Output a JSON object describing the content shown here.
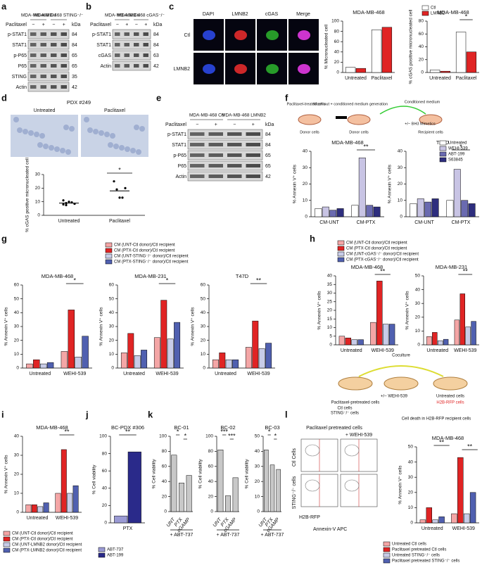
{
  "panel_letters": [
    "a",
    "b",
    "c",
    "d",
    "e",
    "f",
    "g",
    "h",
    "i",
    "j",
    "k",
    "l"
  ],
  "blots": [
    {
      "headers": [
        "MDA-MB-468 Ctl",
        "MDA-MB-468 STING⁻/⁻"
      ],
      "treatment_label": "Paclitaxel",
      "treatment": [
        "−",
        "+",
        "−",
        "+"
      ],
      "unit": "kDa",
      "rows": [
        {
          "name": "p-STAT1",
          "kda": 84
        },
        {
          "name": "STAT1",
          "kda": 84
        },
        {
          "name": "p-P65",
          "kda": 65
        },
        {
          "name": "P65",
          "kda": 65
        },
        {
          "name": "STING",
          "kda": 35
        },
        {
          "name": "Actin",
          "kda": 42
        }
      ]
    },
    {
      "headers": [
        "MDA-MB-468 Ctl",
        "MDA-MB-468 cGAS⁻/⁻"
      ],
      "treatment_label": "Paclitaxel",
      "treatment": [
        "−",
        "+",
        "−",
        "+"
      ],
      "unit": "kDa",
      "rows": [
        {
          "name": "p-STAT1",
          "kda": 84
        },
        {
          "name": "STAT1",
          "kda": 84
        },
        {
          "name": "cGAS",
          "kda": 63
        },
        {
          "name": "Actin",
          "kda": 42
        }
      ]
    },
    {
      "headers": [
        "MDA-MB-468 Ctl",
        "MDA-MB-468 LMNB2"
      ],
      "treatment_label": "Paclitaxel",
      "treatment": [
        "−",
        "+",
        "−",
        "+"
      ],
      "unit": "kDa",
      "rows": [
        {
          "name": "p-STAT1",
          "kda": 84
        },
        {
          "name": "STAT1",
          "kda": 84
        },
        {
          "name": "p-P65",
          "kda": 65
        },
        {
          "name": "P65",
          "kda": 65
        },
        {
          "name": "Actin",
          "kda": 42
        }
      ]
    }
  ],
  "microscopy": {
    "channels": [
      "DAPI",
      "LMNB2",
      "cGAS",
      "Merge"
    ],
    "rows": [
      "Ctl",
      "LMNB2"
    ]
  },
  "ihc": {
    "title": "PDX #249",
    "labels": [
      "Untreated",
      "Paclitaxel"
    ]
  },
  "schematic_f": [
    "Paclitaxel-treated cells",
    "Wash out + conditioned medium generation",
    "Conditioned medium",
    "+/− BH3 Mimetics",
    "Donor cells",
    "Donor cells",
    "Recipient cells"
  ],
  "schematic_l": [
    "Coculture",
    "Paclitaxel-pretreated cells",
    "Ctl cells",
    "STING⁻/⁻ cells",
    "+/− WEHI-539",
    "Untreated cells",
    "H2B-RFP cells",
    "Cell death in H2B-RFP recipient cells"
  ],
  "flow": {
    "title": "Paclitaxel pretreated cells",
    "column": "+ WEHI-539",
    "rows": [
      "Ctl Cells",
      "STING⁻/⁻ cells"
    ],
    "y_label": "H2B-RFP",
    "x_label": "Annexin-V APC"
  },
  "chart_data": [
    {
      "type": "bar",
      "title": "MDA-MB-468",
      "y_label": "% Micronucleated cell",
      "categories": [
        "Untreated",
        "Paclitaxel"
      ],
      "ylim": [
        0,
        100
      ],
      "yticks": [
        0,
        20,
        40,
        60,
        80,
        100
      ],
      "series": [
        {
          "name": "Ctl",
          "color": "#ffffff",
          "values": [
            10,
            83
          ]
        },
        {
          "name": "LMNB2",
          "color": "#e02424",
          "values": [
            8,
            88
          ]
        }
      ],
      "legend": true,
      "annotations": []
    },
    {
      "type": "bar",
      "title": "MDA-MB-468",
      "y_label": "% cGAS positive micronucleated cell",
      "categories": [
        "Untreated",
        "Paclitaxel"
      ],
      "ylim": [
        0,
        80
      ],
      "yticks": [
        0,
        20,
        40,
        60,
        80
      ],
      "series": [
        {
          "name": "Ctl",
          "color": "#ffffff",
          "values": [
            4,
            63
          ]
        },
        {
          "name": "LMNB2",
          "color": "#e02424",
          "values": [
            2,
            32
          ]
        }
      ],
      "legend": false,
      "annotations": [
        "*"
      ]
    },
    {
      "type": "dot",
      "title": "",
      "y_label": "% cGAS positive micronucleated cell",
      "categories": [
        "Untreated",
        "Paclitaxel"
      ],
      "ylim": [
        0,
        30
      ],
      "yticks": [
        0,
        10,
        20,
        30
      ],
      "series": [
        {
          "name": "Mean",
          "color": "#000000",
          "values": [
            9,
            18
          ],
          "points": [
            [
              8,
              9,
              10,
              9.5,
              8.5,
              11,
              7.5
            ],
            [
              25,
              19,
              13,
              13,
              20
            ]
          ]
        }
      ],
      "legend": false,
      "annotations": [
        "*"
      ]
    },
    {
      "type": "bar",
      "title": "MDA-MB-468",
      "y_label": "% Annexin V⁺ cells",
      "categories": [
        "CM-UNT",
        "CM-PTX"
      ],
      "ylim": [
        0,
        40
      ],
      "yticks": [
        0,
        10,
        20,
        30,
        40
      ],
      "series": [
        {
          "name": "Untreated",
          "color": "#ffffff",
          "values": [
            5,
            7
          ]
        },
        {
          "name": "WEHI-539",
          "color": "#c8c4e4",
          "values": [
            6,
            36
          ]
        },
        {
          "name": "ABT-199",
          "color": "#6a6ab0",
          "values": [
            4,
            7
          ]
        },
        {
          "name": "S63845",
          "color": "#2e2e7e",
          "values": [
            5,
            6
          ]
        }
      ],
      "legend": false,
      "annotations": [
        "**"
      ]
    },
    {
      "type": "bar",
      "title": "T47D",
      "y_label": "% Annexin V⁺ cells",
      "categories": [
        "CM-UNT",
        "CM-PTX"
      ],
      "ylim": [
        0,
        40
      ],
      "yticks": [
        0,
        10,
        20,
        30,
        40
      ],
      "series": [
        {
          "name": "Untreated",
          "color": "#ffffff",
          "values": [
            8,
            10
          ]
        },
        {
          "name": "WEHI-539",
          "color": "#c8c4e4",
          "values": [
            11,
            29
          ]
        },
        {
          "name": "ABT-199",
          "color": "#6a6ab0",
          "values": [
            9,
            10
          ]
        },
        {
          "name": "S63845",
          "color": "#2e2e7e",
          "values": [
            11,
            8
          ]
        }
      ],
      "legend": true,
      "annotations": [
        "*"
      ]
    },
    {
      "type": "bar",
      "title": "MDA-MB-468",
      "y_label": "% Annexin V⁺ cells",
      "categories": [
        "Untreated",
        "WEHI-539"
      ],
      "ylim": [
        0,
        60
      ],
      "yticks": [
        0,
        10,
        20,
        30,
        40,
        50,
        60
      ],
      "series": [
        {
          "name": "CM (UNT-Ctl donor)/Ctl recipient",
          "color": "#f4a6a6",
          "values": [
            3,
            12
          ]
        },
        {
          "name": "CM (PTX-Ctl donor)/Ctl recipient",
          "color": "#e02424",
          "values": [
            6,
            42
          ]
        },
        {
          "name": "CM (UNT-STING⁻/⁻ donor)/Ctl recipient",
          "color": "#c8cce8",
          "values": [
            3,
            8
          ]
        },
        {
          "name": "CM (PTX-STING⁻/⁻ donor)/Ctl recipient",
          "color": "#5060b0",
          "values": [
            4,
            23
          ]
        }
      ],
      "legend": true,
      "annotations": [
        "*"
      ]
    },
    {
      "type": "bar",
      "title": "MDA-MB-231",
      "y_label": "% Annexin V⁺ cells",
      "categories": [
        "Untreated",
        "WEHI-539"
      ],
      "ylim": [
        0,
        60
      ],
      "yticks": [
        0,
        10,
        20,
        30,
        40,
        50,
        60
      ],
      "series": [
        {
          "name": "CM (UNT-Ctl donor)/Ctl recipient",
          "color": "#f4a6a6",
          "values": [
            11,
            22
          ]
        },
        {
          "name": "CM (PTX-Ctl donor)/Ctl recipient",
          "color": "#e02424",
          "values": [
            25,
            49
          ]
        },
        {
          "name": "CM (UNT-STING⁻/⁻ donor)/Ctl recipient",
          "color": "#c8cce8",
          "values": [
            9,
            21
          ]
        },
        {
          "name": "CM (PTX-STING⁻/⁻ donor)/Ctl recipient",
          "color": "#5060b0",
          "values": [
            13,
            33
          ]
        }
      ],
      "legend": false,
      "annotations": [
        "*"
      ]
    },
    {
      "type": "bar",
      "title": "T47D",
      "y_label": "% Annexin V⁺ cells",
      "categories": [
        "Untreated",
        "WEHI-539"
      ],
      "ylim": [
        0,
        60
      ],
      "yticks": [
        0,
        10,
        20,
        30,
        40,
        50,
        60
      ],
      "series": [
        {
          "name": "CM (UNT-Ctl donor)/Ctl recipient",
          "color": "#f4a6a6",
          "values": [
            6,
            15
          ]
        },
        {
          "name": "CM (PTX-Ctl donor)/Ctl recipient",
          "color": "#e02424",
          "values": [
            11,
            34
          ]
        },
        {
          "name": "CM (UNT-STING⁻/⁻ donor)/Ctl recipient",
          "color": "#c8cce8",
          "values": [
            6,
            14
          ]
        },
        {
          "name": "CM (PTX-STING⁻/⁻ donor)/Ctl recipient",
          "color": "#5060b0",
          "values": [
            6,
            18
          ]
        }
      ],
      "legend": false,
      "annotations": [
        "**"
      ]
    },
    {
      "type": "bar",
      "title": "MDA-MB-468",
      "y_label": "% Annexin V⁺ cells",
      "categories": [
        "Untreated",
        "WEHI-539"
      ],
      "ylim": [
        0,
        40
      ],
      "yticks": [
        0,
        5,
        10,
        15,
        20,
        25,
        30,
        35,
        40
      ],
      "series": [
        {
          "name": "CM (UNT-Ctl donor)/Ctl recipient",
          "color": "#f4a6a6",
          "values": [
            5,
            13
          ]
        },
        {
          "name": "CM (PTX-Ctl donor)/Ctl recipient",
          "color": "#e02424",
          "values": [
            4,
            37
          ]
        },
        {
          "name": "CM (UNT-cGAS⁻/⁻ donor)/Ctl recipient",
          "color": "#c8cce8",
          "values": [
            3,
            12
          ]
        },
        {
          "name": "CM (PTX-cGAS⁻/⁻ donor)/Ctl recipient",
          "color": "#5060b0",
          "values": [
            3,
            12
          ]
        }
      ],
      "legend": true,
      "annotations": [
        "**"
      ]
    },
    {
      "type": "bar",
      "title": "MDA-MB-231",
      "y_label": "% Annexin V⁺ cells",
      "categories": [
        "Untreated",
        "WEHI-539"
      ],
      "ylim": [
        0,
        50
      ],
      "yticks": [
        0,
        10,
        20,
        30,
        40,
        50
      ],
      "series": [
        {
          "name": "CM (UNT-Ctl donor)/Ctl recipient",
          "color": "#f4a6a6",
          "values": [
            6,
            18
          ]
        },
        {
          "name": "CM (PTX-Ctl donor)/Ctl recipient",
          "color": "#e02424",
          "values": [
            9,
            37
          ]
        },
        {
          "name": "CM (UNT-cGAS⁻/⁻ donor)/Ctl recipient",
          "color": "#c8cce8",
          "values": [
            3,
            13
          ]
        },
        {
          "name": "CM (PTX-cGAS⁻/⁻ donor)/Ctl recipient",
          "color": "#5060b0",
          "values": [
            4,
            17
          ]
        }
      ],
      "legend": false,
      "annotations": [
        "**"
      ]
    },
    {
      "type": "bar",
      "title": "MDA-MB-468",
      "y_label": "% Annexin V⁺ cells",
      "categories": [
        "Untreated",
        "WEHI-539"
      ],
      "ylim": [
        0,
        40
      ],
      "yticks": [
        0,
        10,
        20,
        30,
        40
      ],
      "series": [
        {
          "name": "CM (UNT-Ctl donor)/Ctl recipient",
          "color": "#f4a6a6",
          "values": [
            4,
            10
          ]
        },
        {
          "name": "CM (PTX-Ctl donor)/Ctl recipient",
          "color": "#e02424",
          "values": [
            4,
            33
          ]
        },
        {
          "name": "CM (UNT-LMNB2 donor)/Ctl recipient",
          "color": "#c8cce8",
          "values": [
            3,
            10
          ]
        },
        {
          "name": "CM (PTX-LMNB2 donor)/Ctl recipient",
          "color": "#5060b0",
          "values": [
            5,
            14
          ]
        }
      ],
      "legend": true,
      "annotations": [
        "**"
      ]
    },
    {
      "type": "bar",
      "title": "BC-PDX #306",
      "y_label": "% Cell viability",
      "categories": [
        "PTX"
      ],
      "ylim": [
        0,
        100
      ],
      "yticks": [
        0,
        20,
        40,
        60,
        80,
        100
      ],
      "series": [
        {
          "name": "ABT-737",
          "color": "#9a9ad4",
          "values": [
            8
          ]
        },
        {
          "name": "ABT-199",
          "color": "#2a2a8a",
          "values": [
            82
          ]
        }
      ],
      "legend": true,
      "annotations": [
        "**"
      ]
    },
    {
      "type": "bar",
      "title": "BC-01",
      "y_label": "% Cell viability",
      "categories": [
        "UNT",
        "PTX",
        "cGAMP"
      ],
      "ylim": [
        0,
        100
      ],
      "yticks": [
        0,
        20,
        40,
        60,
        80,
        100
      ],
      "footer": "+ ABT-737",
      "series": [
        {
          "name": "",
          "color": "#c8c8c8",
          "values": [
            75,
            38,
            48
          ]
        }
      ],
      "legend": false,
      "annotations": [
        "*",
        "*"
      ]
    },
    {
      "type": "bar",
      "title": "BC-02",
      "y_label": "% Cell viability",
      "categories": [
        "UNT",
        "PTX",
        "cGAMP"
      ],
      "ylim": [
        0,
        100
      ],
      "yticks": [
        0,
        20,
        40,
        60,
        80,
        100
      ],
      "footer": "+ ABT-737",
      "series": [
        {
          "name": "",
          "color": "#c8c8c8",
          "values": [
            82,
            21,
            45
          ]
        }
      ],
      "legend": false,
      "annotations": [
        "***",
        "***"
      ]
    },
    {
      "type": "bar",
      "title": "BC-03",
      "y_label": "% Cell viability",
      "categories": [
        "UNT",
        "PTX",
        "cGAMP"
      ],
      "ylim": [
        0,
        50
      ],
      "yticks": [
        0,
        10,
        20,
        30,
        40,
        50
      ],
      "footer": "+ ABT-737",
      "series": [
        {
          "name": "",
          "color": "#c8c8c8",
          "values": [
            41,
            31,
            28
          ]
        }
      ],
      "legend": false,
      "annotations": [
        "*",
        "*"
      ]
    },
    {
      "type": "bar",
      "title": "MDA-MB-468",
      "y_label": "% Annexin V⁺ cells",
      "categories": [
        "Untreated",
        "WEHI-539"
      ],
      "ylim": [
        0,
        50
      ],
      "yticks": [
        0,
        10,
        20,
        30,
        40,
        50
      ],
      "series": [
        {
          "name": "Untreated Ctl cells",
          "color": "#f4a6a6",
          "values": [
            2,
            6
          ]
        },
        {
          "name": "Paclitaxel pretreated Ctl cells",
          "color": "#e02424",
          "values": [
            10,
            43
          ]
        },
        {
          "name": "Untreated STING⁻/⁻ cells",
          "color": "#c8cce8",
          "values": [
            2,
            6
          ]
        },
        {
          "name": "Paclitaxel pretreated STING⁻/⁻ cells",
          "color": "#5060b0",
          "values": [
            4,
            20
          ]
        }
      ],
      "legend": true,
      "annotations": [
        "**",
        "**"
      ]
    }
  ]
}
